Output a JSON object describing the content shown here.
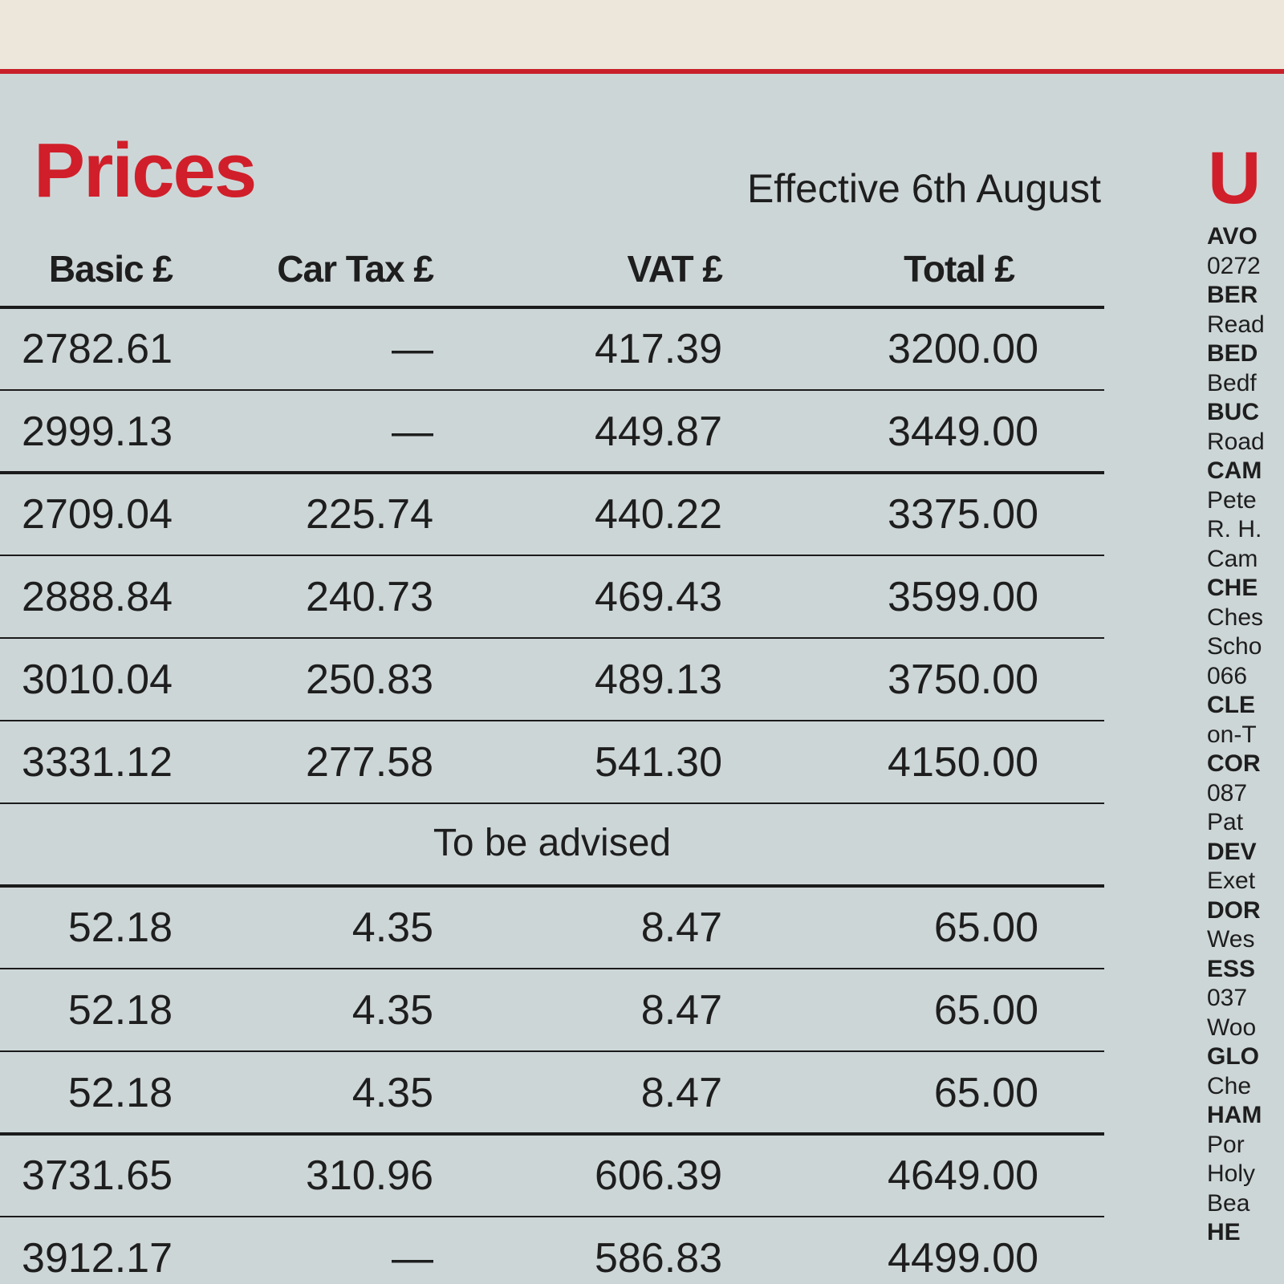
{
  "header": {
    "title": "Prices",
    "effective": "Effective 6th August"
  },
  "table": {
    "columns": [
      "Basic £",
      "Car Tax £",
      "VAT £",
      "Total £"
    ],
    "groups": [
      [
        [
          "2782.61",
          "—",
          "417.39",
          "3200.00"
        ],
        [
          "2999.13",
          "—",
          "449.87",
          "3449.00"
        ]
      ],
      [
        [
          "2709.04",
          "225.74",
          "440.22",
          "3375.00"
        ],
        [
          "2888.84",
          "240.73",
          "469.43",
          "3599.00"
        ],
        [
          "3010.04",
          "250.83",
          "489.13",
          "3750.00"
        ],
        [
          "3331.12",
          "277.58",
          "541.30",
          "4150.00"
        ],
        [
          "To be advised"
        ]
      ],
      [
        [
          "52.18",
          "4.35",
          "8.47",
          "65.00"
        ],
        [
          "52.18",
          "4.35",
          "8.47",
          "65.00"
        ],
        [
          "52.18",
          "4.35",
          "8.47",
          "65.00"
        ]
      ],
      [
        [
          "3731.65",
          "310.96",
          "606.39",
          "4649.00"
        ],
        [
          "3912.17",
          "—",
          "586.83",
          "4499.00"
        ]
      ]
    ]
  },
  "sidebar": {
    "title": "U",
    "items": [
      {
        "text": "AVO",
        "bold": true
      },
      {
        "text": "0272",
        "bold": false
      },
      {
        "text": "BER",
        "bold": true
      },
      {
        "text": "Read",
        "bold": false
      },
      {
        "text": "BED",
        "bold": true
      },
      {
        "text": "Bedf",
        "bold": false
      },
      {
        "text": "BUC",
        "bold": true
      },
      {
        "text": "Road",
        "bold": false
      },
      {
        "text": "CAM",
        "bold": true
      },
      {
        "text": "Pete",
        "bold": false
      },
      {
        "text": "R. H.",
        "bold": false
      },
      {
        "text": "Cam",
        "bold": false
      },
      {
        "text": "CHE",
        "bold": true
      },
      {
        "text": "Ches",
        "bold": false
      },
      {
        "text": "Scho",
        "bold": false
      },
      {
        "text": "066",
        "bold": false
      },
      {
        "text": "CLE",
        "bold": true
      },
      {
        "text": "on-T",
        "bold": false
      },
      {
        "text": "COR",
        "bold": true
      },
      {
        "text": "087",
        "bold": false
      },
      {
        "text": "Pat",
        "bold": false
      },
      {
        "text": "DEV",
        "bold": true
      },
      {
        "text": "Exet",
        "bold": false
      },
      {
        "text": "DOR",
        "bold": true
      },
      {
        "text": "Wes",
        "bold": false
      },
      {
        "text": "ESS",
        "bold": true
      },
      {
        "text": "037",
        "bold": false
      },
      {
        "text": "Woo",
        "bold": false
      },
      {
        "text": "GLO",
        "bold": true
      },
      {
        "text": "Che",
        "bold": false
      },
      {
        "text": "HAM",
        "bold": true
      },
      {
        "text": "Por",
        "bold": false
      },
      {
        "text": "Holy",
        "bold": false
      },
      {
        "text": "Bea",
        "bold": false
      },
      {
        "text": "HE",
        "bold": true
      }
    ]
  }
}
